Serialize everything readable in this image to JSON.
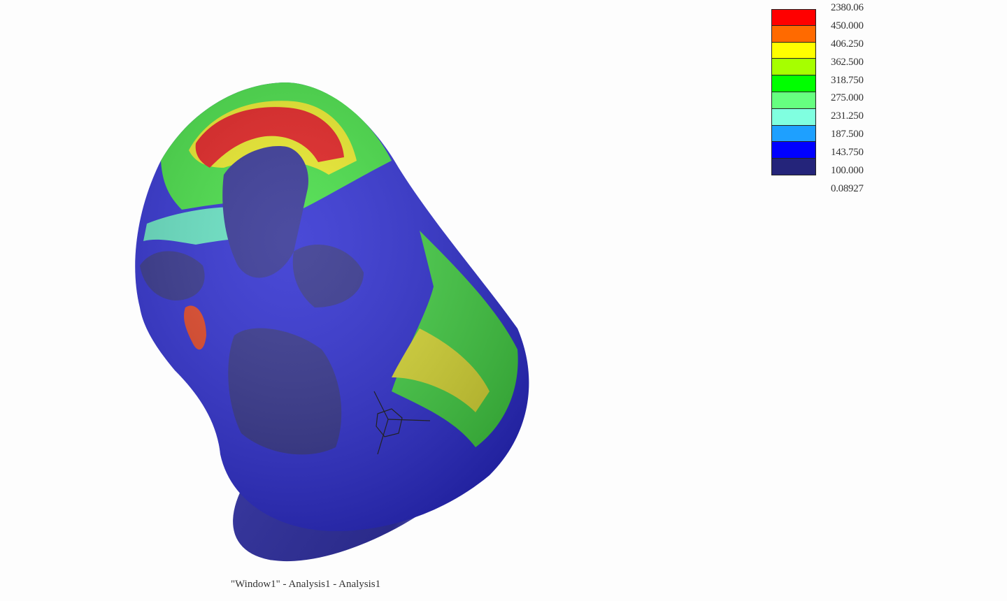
{
  "legend": {
    "labels": [
      "2380.06",
      "450.000",
      "406.250",
      "362.500",
      "318.750",
      "275.000",
      "231.250",
      "187.500",
      "143.750",
      "100.000",
      "0.08927"
    ],
    "colors": [
      "#ff0000",
      "#ff6a00",
      "#ffff00",
      "#a6ff00",
      "#00ff00",
      "#66ff80",
      "#80ffe0",
      "#1ea0ff",
      "#0000ff",
      "#24247a"
    ]
  },
  "caption": "\"Window1\" - Analysis1 - Analysis1",
  "triad_icon": "coordinate-axes-triad-icon"
}
